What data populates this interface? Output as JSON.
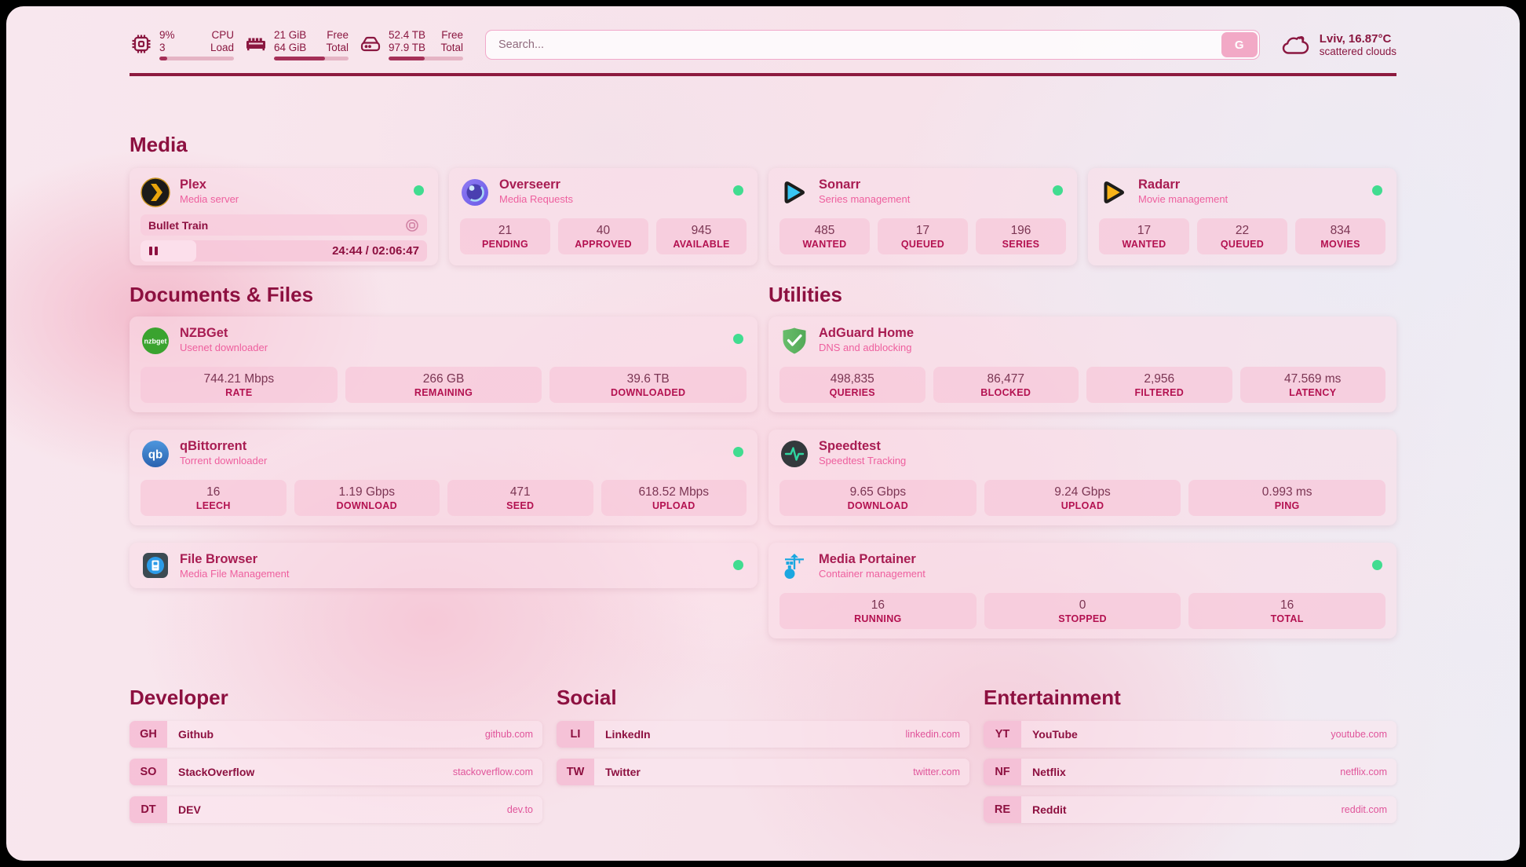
{
  "topbar": {
    "resources": [
      {
        "icon": "cpu-icon",
        "values": [
          "9%",
          "3"
        ],
        "labels": [
          "CPU",
          "Load"
        ],
        "progress_percent": 10
      },
      {
        "icon": "memory-icon",
        "values": [
          "21 GiB",
          "64 GiB"
        ],
        "labels": [
          "Free",
          "Total"
        ],
        "progress_percent": 68
      },
      {
        "icon": "disk-icon",
        "values": [
          "52.4 TB",
          "97.9 TB"
        ],
        "labels": [
          "Free",
          "Total"
        ],
        "progress_percent": 48
      }
    ],
    "search": {
      "placeholder": "Search...",
      "provider_button": "G"
    },
    "weather": {
      "location": "Lviv, 16.87°C",
      "condition": "scattered clouds"
    }
  },
  "sections": {
    "media": {
      "title": "Media",
      "plex": {
        "name": "Plex",
        "description": "Media server",
        "status": "online",
        "now_playing": "Bullet Train",
        "time": "24:44 / 02:06:47",
        "progress_percent": 19.5
      },
      "overseerr": {
        "name": "Overseerr",
        "description": "Media Requests",
        "status": "online",
        "stats": [
          {
            "value": "21",
            "label": "PENDING"
          },
          {
            "value": "40",
            "label": "APPROVED"
          },
          {
            "value": "945",
            "label": "AVAILABLE"
          }
        ]
      },
      "sonarr": {
        "name": "Sonarr",
        "description": "Series management",
        "status": "online",
        "stats": [
          {
            "value": "485",
            "label": "WANTED"
          },
          {
            "value": "17",
            "label": "QUEUED"
          },
          {
            "value": "196",
            "label": "SERIES"
          }
        ]
      },
      "radarr": {
        "name": "Radarr",
        "description": "Movie management",
        "status": "online",
        "stats": [
          {
            "value": "17",
            "label": "WANTED"
          },
          {
            "value": "22",
            "label": "QUEUED"
          },
          {
            "value": "834",
            "label": "MOVIES"
          }
        ]
      }
    },
    "documents": {
      "title": "Documents & Files",
      "nzbget": {
        "name": "NZBGet",
        "description": "Usenet downloader",
        "status": "online",
        "stats": [
          {
            "value": "744.21 Mbps",
            "label": "RATE"
          },
          {
            "value": "266 GB",
            "label": "REMAINING"
          },
          {
            "value": "39.6 TB",
            "label": "DOWNLOADED"
          }
        ]
      },
      "qbittorrent": {
        "name": "qBittorrent",
        "description": "Torrent downloader",
        "status": "online",
        "stats": [
          {
            "value": "16",
            "label": "LEECH"
          },
          {
            "value": "1.19 Gbps",
            "label": "DOWNLOAD"
          },
          {
            "value": "471",
            "label": "SEED"
          },
          {
            "value": "618.52 Mbps",
            "label": "UPLOAD"
          }
        ]
      },
      "filebrowser": {
        "name": "File Browser",
        "description": "Media File Management",
        "status": "online"
      }
    },
    "utilities": {
      "title": "Utilities",
      "adguard": {
        "name": "AdGuard Home",
        "description": "DNS and adblocking",
        "stats": [
          {
            "value": "498,835",
            "label": "QUERIES"
          },
          {
            "value": "86,477",
            "label": "BLOCKED"
          },
          {
            "value": "2,956",
            "label": "FILTERED"
          },
          {
            "value": "47.569 ms",
            "label": "LATENCY"
          }
        ]
      },
      "speedtest": {
        "name": "Speedtest",
        "description": "Speedtest Tracking",
        "stats": [
          {
            "value": "9.65 Gbps",
            "label": "DOWNLOAD"
          },
          {
            "value": "9.24 Gbps",
            "label": "UPLOAD"
          },
          {
            "value": "0.993 ms",
            "label": "PING"
          }
        ]
      },
      "portainer": {
        "name": "Media Portainer",
        "description": "Container management",
        "status": "online",
        "stats": [
          {
            "value": "16",
            "label": "RUNNING"
          },
          {
            "value": "0",
            "label": "STOPPED"
          },
          {
            "value": "16",
            "label": "TOTAL"
          }
        ]
      }
    },
    "bookmarks": [
      {
        "title": "Developer",
        "links": [
          {
            "abbr": "GH",
            "label": "Github",
            "url": "github.com"
          },
          {
            "abbr": "SO",
            "label": "StackOverflow",
            "url": "stackoverflow.com"
          },
          {
            "abbr": "DT",
            "label": "DEV",
            "url": "dev.to"
          }
        ]
      },
      {
        "title": "Social",
        "links": [
          {
            "abbr": "LI",
            "label": "LinkedIn",
            "url": "linkedin.com"
          },
          {
            "abbr": "TW",
            "label": "Twitter",
            "url": "twitter.com"
          }
        ]
      },
      {
        "title": "Entertainment",
        "links": [
          {
            "abbr": "YT",
            "label": "YouTube",
            "url": "youtube.com"
          },
          {
            "abbr": "NF",
            "label": "Netflix",
            "url": "netflix.com"
          },
          {
            "abbr": "RE",
            "label": "Reddit",
            "url": "reddit.com"
          }
        ]
      }
    ]
  },
  "colors": {
    "accent": "#8d1040",
    "subtitle_pink": "#ee5f9e",
    "status_online": "#41dc90",
    "card_bg": "#fadde8",
    "stat_bg": "#f6c7d9",
    "frame": "#000000"
  }
}
